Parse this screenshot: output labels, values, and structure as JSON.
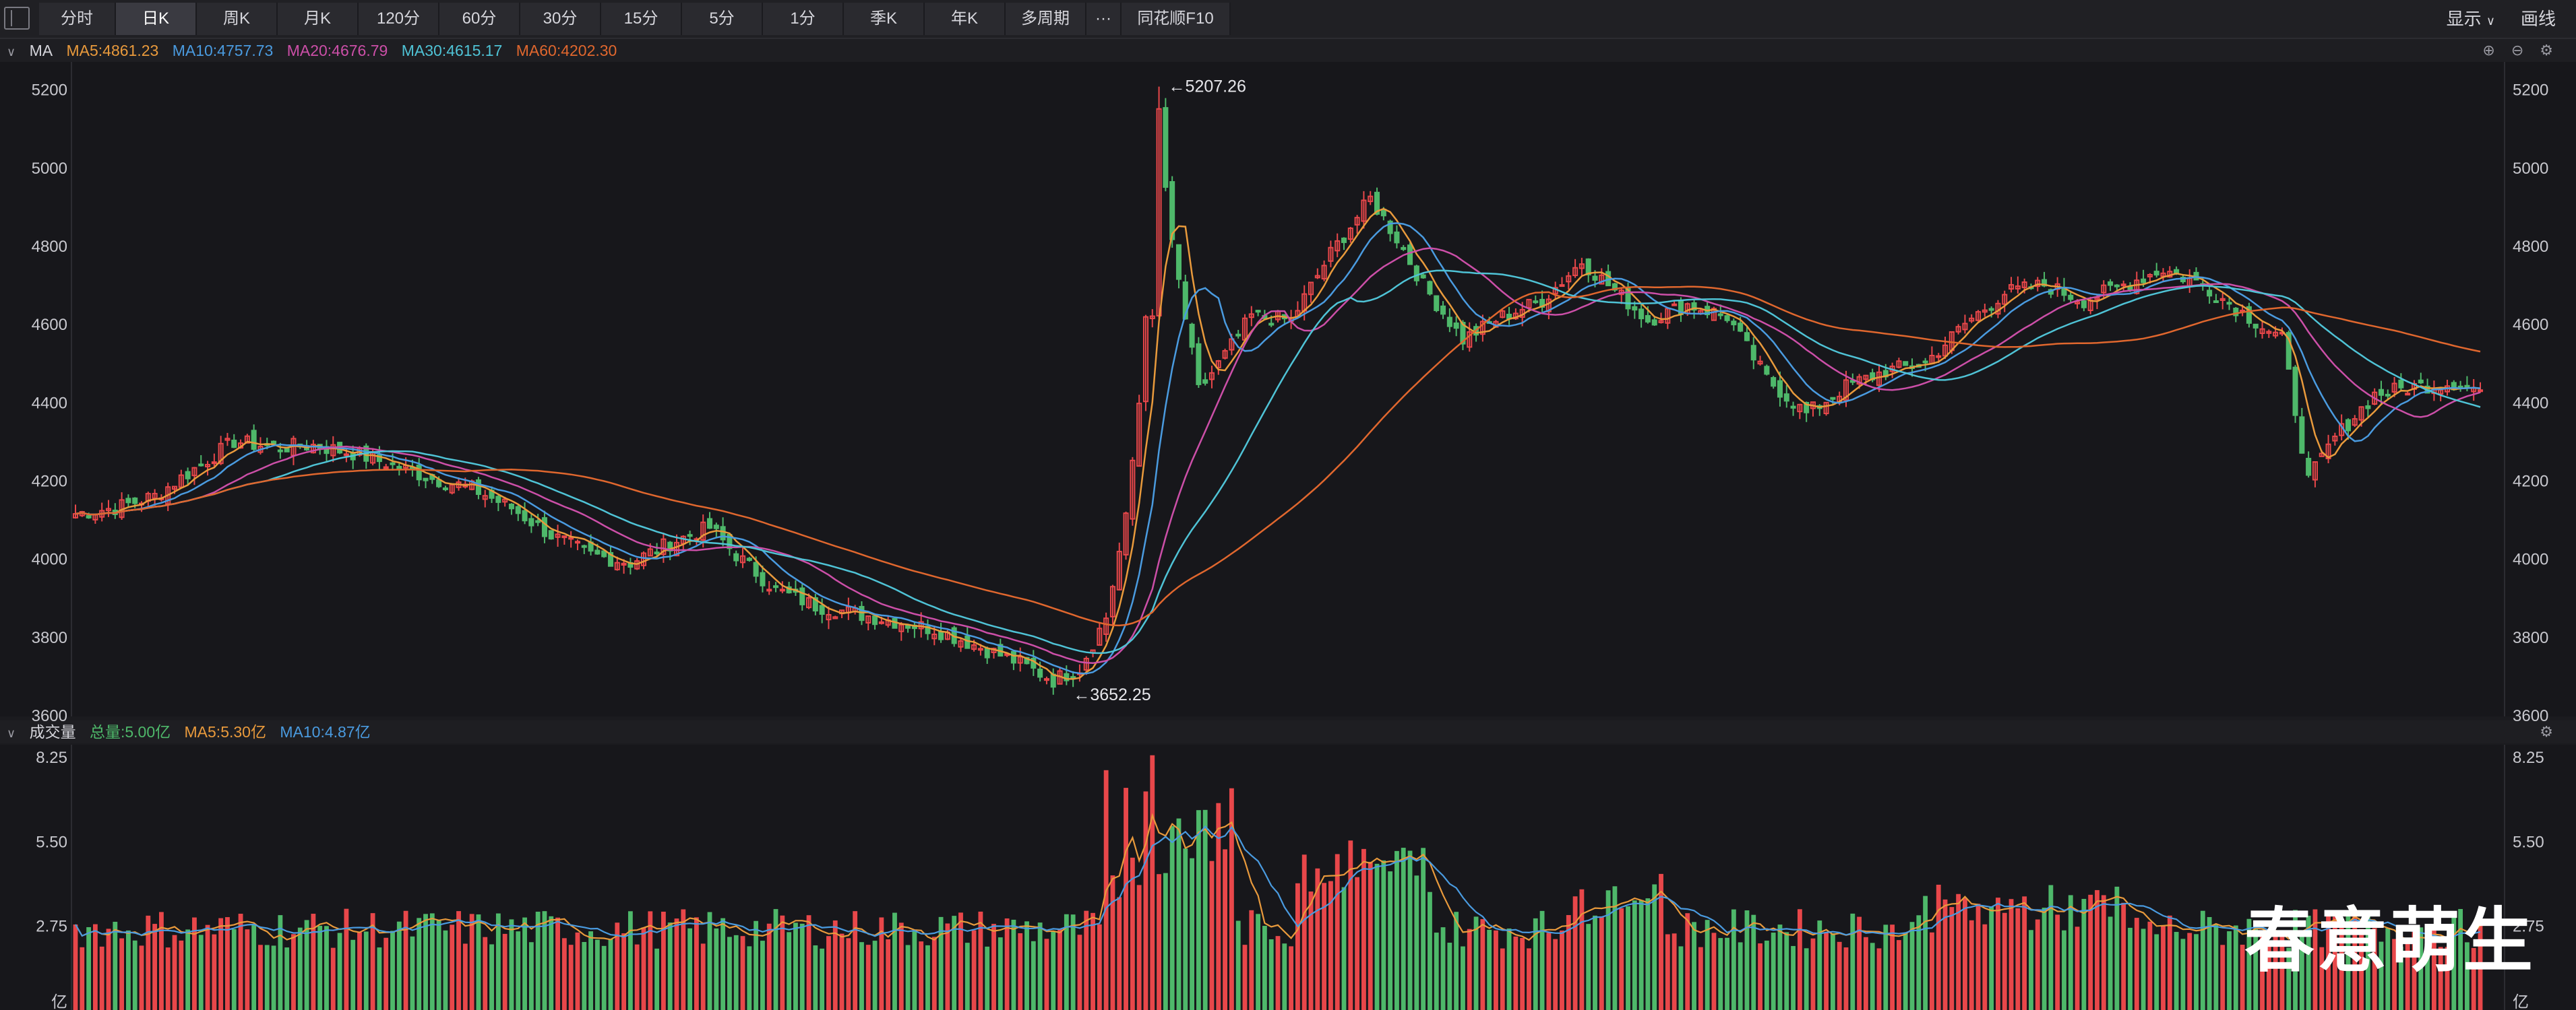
{
  "toolbar": {
    "tabs": [
      "分时",
      "日K",
      "周K",
      "月K",
      "120分",
      "60分",
      "30分",
      "15分",
      "5分",
      "1分",
      "季K",
      "年K",
      "多周期",
      "···",
      "同花顺F10"
    ],
    "active_tab": "日K",
    "display_label": "显示",
    "draw_label": "画线"
  },
  "price_panel": {
    "indicator": "MA",
    "ma5": "MA5:4861.23",
    "ma10": "MA10:4757.73",
    "ma20": "MA20:4676.79",
    "ma30": "MA30:4615.17",
    "ma60": "MA60:4202.30",
    "high_label": "5207.26",
    "low_label": "3652.25"
  },
  "volume_panel": {
    "label": "成交量",
    "total": "总量:5.00亿",
    "ma5": "MA5:5.30亿",
    "ma10": "MA10:4.87亿",
    "unit": "亿"
  },
  "watermark": "春意萌生",
  "colors": {
    "up": "#e8474a",
    "down": "#4eb86a",
    "ma5": "#e99a3c",
    "ma10": "#4a9be0",
    "ma20": "#cc4fa8",
    "ma30": "#4fc3d6",
    "ma60": "#e0672e",
    "background": "#1b1b1f"
  },
  "chart_data": [
    {
      "type": "candlestick",
      "title": "日K",
      "y_ticks": [
        3600,
        3800,
        4000,
        4200,
        4400,
        4600,
        4800,
        5000,
        5200
      ],
      "ylim": [
        3600,
        5270
      ],
      "ohlc": [
        {
          "day": 0,
          "c": 4115
        },
        {
          "day": 6,
          "c": 4130
        },
        {
          "day": 12,
          "c": 4160
        },
        {
          "day": 18,
          "c": 4230
        },
        {
          "day": 24,
          "c": 4300
        },
        {
          "day": 30,
          "c": 4285
        },
        {
          "day": 36,
          "c": 4290
        },
        {
          "day": 42,
          "c": 4270
        },
        {
          "day": 48,
          "c": 4240
        },
        {
          "day": 54,
          "c": 4205
        },
        {
          "day": 60,
          "c": 4180
        },
        {
          "day": 66,
          "c": 4130
        },
        {
          "day": 72,
          "c": 4060
        },
        {
          "day": 78,
          "c": 4010
        },
        {
          "day": 84,
          "c": 3990
        },
        {
          "day": 90,
          "c": 4040
        },
        {
          "day": 96,
          "c": 4080
        },
        {
          "day": 100,
          "c": 4010
        },
        {
          "day": 106,
          "c": 3920
        },
        {
          "day": 112,
          "c": 3880
        },
        {
          "day": 118,
          "c": 3860
        },
        {
          "day": 124,
          "c": 3840
        },
        {
          "day": 130,
          "c": 3820
        },
        {
          "day": 136,
          "c": 3780
        },
        {
          "day": 142,
          "c": 3740
        },
        {
          "day": 148,
          "c": 3690
        },
        {
          "day": 152,
          "c": 3720
        },
        {
          "day": 156,
          "c": 3850
        },
        {
          "day": 159,
          "c": 4100
        },
        {
          "day": 161,
          "c": 4400
        },
        {
          "day": 164,
          "c": 5100
        },
        {
          "day": 166,
          "c": 4800
        },
        {
          "day": 170,
          "c": 4430
        },
        {
          "day": 174,
          "c": 4520
        },
        {
          "day": 178,
          "c": 4620
        },
        {
          "day": 184,
          "c": 4610
        },
        {
          "day": 190,
          "c": 4780
        },
        {
          "day": 196,
          "c": 4920
        },
        {
          "day": 200,
          "c": 4820
        },
        {
          "day": 204,
          "c": 4700
        },
        {
          "day": 210,
          "c": 4560
        },
        {
          "day": 216,
          "c": 4620
        },
        {
          "day": 222,
          "c": 4660
        },
        {
          "day": 228,
          "c": 4760
        },
        {
          "day": 232,
          "c": 4700
        },
        {
          "day": 238,
          "c": 4610
        },
        {
          "day": 244,
          "c": 4650
        },
        {
          "day": 250,
          "c": 4620
        },
        {
          "day": 256,
          "c": 4460
        },
        {
          "day": 262,
          "c": 4370
        },
        {
          "day": 268,
          "c": 4440
        },
        {
          "day": 274,
          "c": 4480
        },
        {
          "day": 280,
          "c": 4500
        },
        {
          "day": 286,
          "c": 4600
        },
        {
          "day": 292,
          "c": 4680
        },
        {
          "day": 298,
          "c": 4700
        },
        {
          "day": 304,
          "c": 4660
        },
        {
          "day": 310,
          "c": 4700
        },
        {
          "day": 316,
          "c": 4740
        },
        {
          "day": 322,
          "c": 4700
        },
        {
          "day": 328,
          "c": 4630
        },
        {
          "day": 334,
          "c": 4560
        },
        {
          "day": 338,
          "c": 4200
        },
        {
          "day": 342,
          "c": 4310
        },
        {
          "day": 348,
          "c": 4420
        },
        {
          "day": 354,
          "c": 4440
        },
        {
          "day": 360,
          "c": 4450
        },
        {
          "day": 364,
          "c": 4430
        }
      ],
      "annotations": [
        {
          "label": "5207.26",
          "type": "high"
        },
        {
          "label": "3652.25",
          "type": "low"
        }
      ]
    },
    {
      "type": "bar",
      "title": "成交量",
      "y_ticks": [
        2.75,
        5.5,
        8.25
      ],
      "ylim": [
        0,
        8.6
      ],
      "unit": "亿"
    }
  ]
}
